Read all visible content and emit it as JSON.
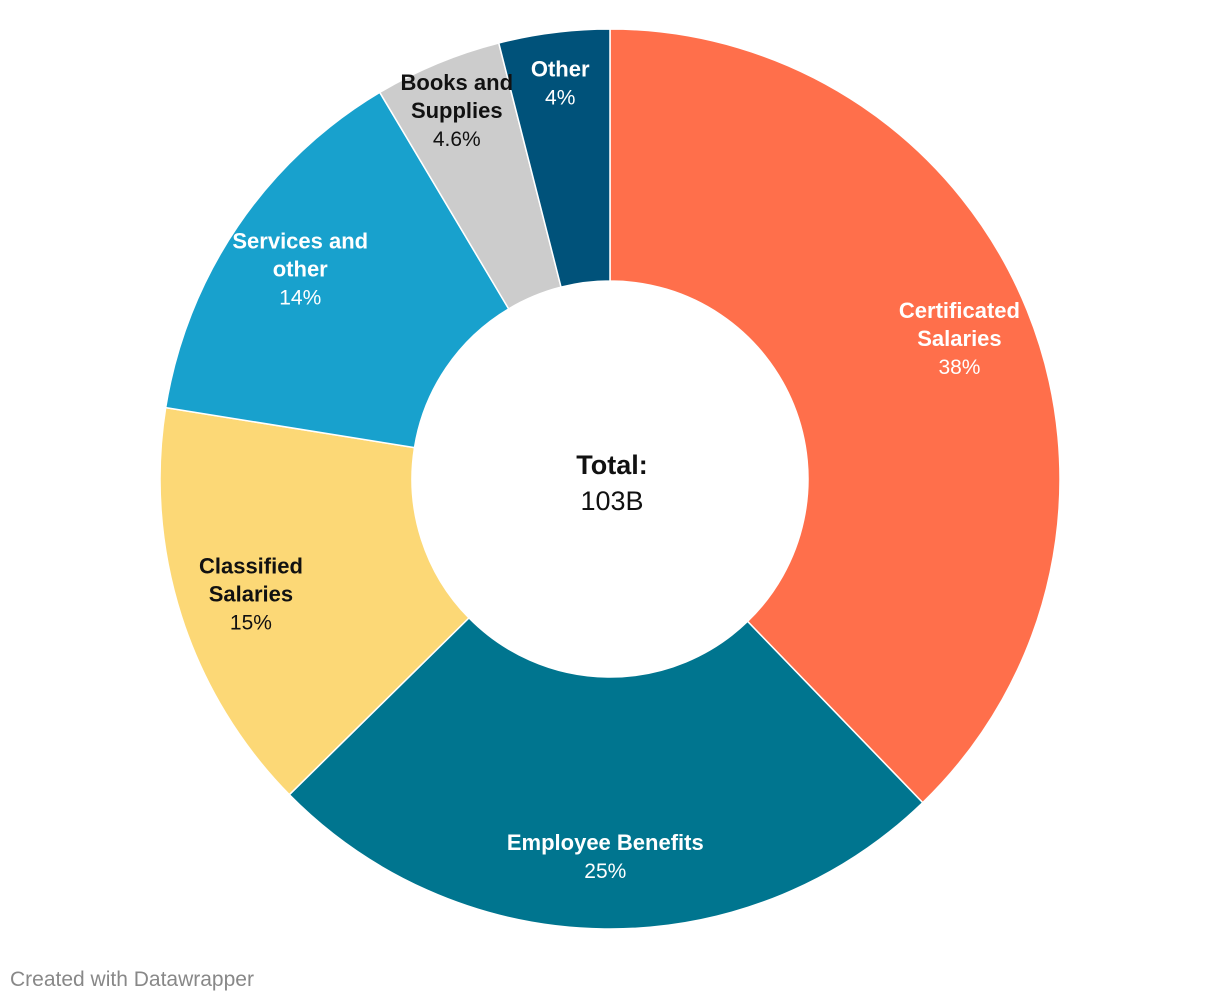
{
  "chart_data": {
    "type": "pie",
    "variant": "donut",
    "center": {
      "title": "Total:",
      "value": "103B"
    },
    "slices": [
      {
        "name": "Certificated Salaries",
        "label_lines": [
          "Certificated",
          "Salaries"
        ],
        "value": 38,
        "value_label": "38%",
        "color": "#ff6f4b",
        "label_color": "#ffffff"
      },
      {
        "name": "Employee Benefits",
        "label_lines": [
          "Employee Benefits"
        ],
        "value": 25,
        "value_label": "25%",
        "color": "#00758f",
        "label_color": "#ffffff"
      },
      {
        "name": "Classified Salaries",
        "label_lines": [
          "Classified",
          "Salaries"
        ],
        "value": 15,
        "value_label": "15%",
        "color": "#fcd876",
        "label_color": "#111111"
      },
      {
        "name": "Services and other",
        "label_lines": [
          "Services and",
          "other"
        ],
        "value": 14,
        "value_label": "14%",
        "color": "#18a1cd",
        "label_color": "#ffffff"
      },
      {
        "name": "Books and Supplies",
        "label_lines": [
          "Books and",
          "Supplies"
        ],
        "value": 4.6,
        "value_label": "4.6%",
        "color": "#cccccc",
        "label_color": "#111111"
      },
      {
        "name": "Other",
        "label_lines": [
          "Other"
        ],
        "value": 4,
        "value_label": "4%",
        "color": "#00527a",
        "label_color": "#ffffff"
      }
    ],
    "start_angle": "12 o'clock",
    "direction": "clockwise"
  },
  "footer": {
    "credit": "Created with Datawrapper"
  }
}
